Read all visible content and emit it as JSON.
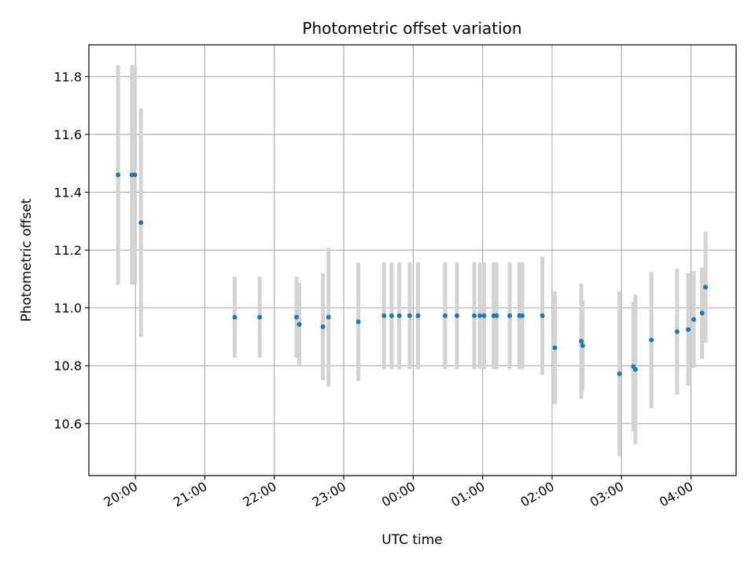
{
  "chart_data": {
    "type": "scatter",
    "title": "Photometric offset variation",
    "xlabel": "UTC time",
    "ylabel": "Photometric offset",
    "grid": true,
    "x_unit": "hours since 20:00 UTC (wrapping past midnight)",
    "xlim": [
      -0.67,
      8.65
    ],
    "ylim": [
      10.42,
      11.91
    ],
    "x_ticks": [
      {
        "value": 0,
        "label": "20:00"
      },
      {
        "value": 1,
        "label": "21:00"
      },
      {
        "value": 2,
        "label": "22:00"
      },
      {
        "value": 3,
        "label": "23:00"
      },
      {
        "value": 4,
        "label": "00:00"
      },
      {
        "value": 5,
        "label": "01:00"
      },
      {
        "value": 6,
        "label": "02:00"
      },
      {
        "value": 7,
        "label": "03:00"
      },
      {
        "value": 8,
        "label": "04:00"
      }
    ],
    "y_ticks": [
      {
        "value": 10.6,
        "label": "10.6"
      },
      {
        "value": 10.8,
        "label": "10.8"
      },
      {
        "value": 11.0,
        "label": "11.0"
      },
      {
        "value": 11.2,
        "label": "11.2"
      },
      {
        "value": 11.4,
        "label": "11.4"
      },
      {
        "value": 11.6,
        "label": "11.6"
      },
      {
        "value": 11.8,
        "label": "11.8"
      }
    ],
    "colors": {
      "marker": "#1f77b4",
      "errorbar": "#d3d3d3",
      "grid": "#b0b0b0"
    },
    "points": [
      {
        "x": -0.25,
        "y": 11.46,
        "err": 0.38
      },
      {
        "x": -0.05,
        "y": 11.46,
        "err": 0.38
      },
      {
        "x": -0.01,
        "y": 11.46,
        "err": 0.38
      },
      {
        "x": 0.08,
        "y": 11.295,
        "err": 0.395
      },
      {
        "x": 1.43,
        "y": 10.968,
        "err": 0.14
      },
      {
        "x": 1.79,
        "y": 10.968,
        "err": 0.14
      },
      {
        "x": 2.32,
        "y": 10.968,
        "err": 0.14
      },
      {
        "x": 2.36,
        "y": 10.943,
        "err": 0.145
      },
      {
        "x": 2.7,
        "y": 10.935,
        "err": 0.185
      },
      {
        "x": 2.78,
        "y": 10.968,
        "err": 0.24
      },
      {
        "x": 3.21,
        "y": 10.952,
        "err": 0.205
      },
      {
        "x": 3.58,
        "y": 10.973,
        "err": 0.185
      },
      {
        "x": 3.69,
        "y": 10.973,
        "err": 0.185
      },
      {
        "x": 3.8,
        "y": 10.973,
        "err": 0.185
      },
      {
        "x": 3.95,
        "y": 10.973,
        "err": 0.185
      },
      {
        "x": 4.07,
        "y": 10.973,
        "err": 0.185
      },
      {
        "x": 4.46,
        "y": 10.973,
        "err": 0.185
      },
      {
        "x": 4.63,
        "y": 10.973,
        "err": 0.185
      },
      {
        "x": 4.88,
        "y": 10.973,
        "err": 0.185
      },
      {
        "x": 4.96,
        "y": 10.973,
        "err": 0.185
      },
      {
        "x": 5.02,
        "y": 10.973,
        "err": 0.185
      },
      {
        "x": 5.16,
        "y": 10.973,
        "err": 0.185
      },
      {
        "x": 5.2,
        "y": 10.973,
        "err": 0.185
      },
      {
        "x": 5.39,
        "y": 10.973,
        "err": 0.185
      },
      {
        "x": 5.53,
        "y": 10.973,
        "err": 0.185
      },
      {
        "x": 5.57,
        "y": 10.973,
        "err": 0.185
      },
      {
        "x": 5.86,
        "y": 10.973,
        "err": 0.205
      },
      {
        "x": 6.04,
        "y": 10.862,
        "err": 0.195
      },
      {
        "x": 6.42,
        "y": 10.885,
        "err": 0.2
      },
      {
        "x": 6.44,
        "y": 10.87,
        "err": 0.155
      },
      {
        "x": 6.97,
        "y": 10.772,
        "err": 0.285
      },
      {
        "x": 7.17,
        "y": 10.797,
        "err": 0.225
      },
      {
        "x": 7.2,
        "y": 10.787,
        "err": 0.26
      },
      {
        "x": 7.43,
        "y": 10.889,
        "err": 0.235
      },
      {
        "x": 7.8,
        "y": 10.918,
        "err": 0.218
      },
      {
        "x": 7.96,
        "y": 10.925,
        "err": 0.195
      },
      {
        "x": 8.04,
        "y": 10.96,
        "err": 0.168
      },
      {
        "x": 8.16,
        "y": 10.982,
        "err": 0.158
      },
      {
        "x": 8.21,
        "y": 11.072,
        "err": 0.192
      }
    ]
  }
}
